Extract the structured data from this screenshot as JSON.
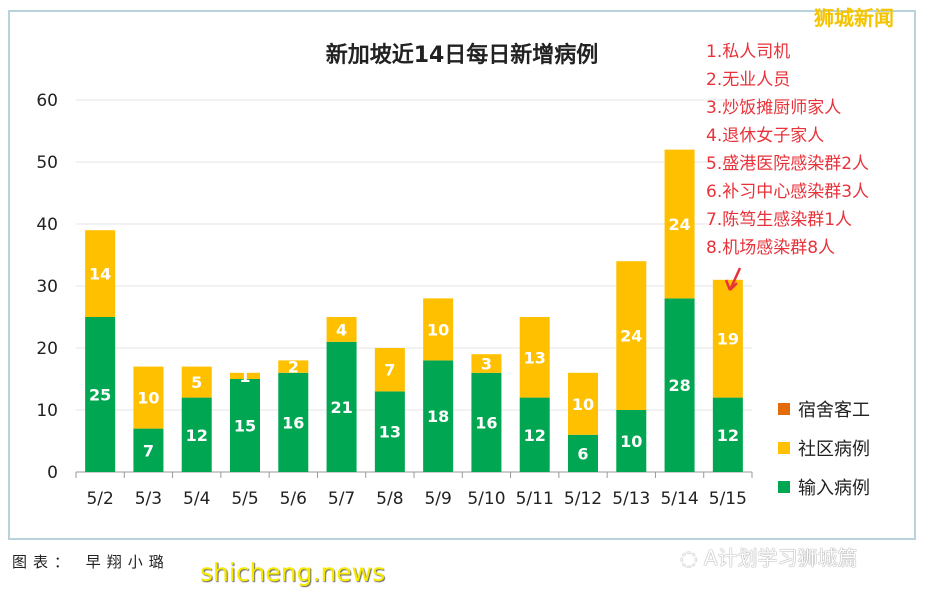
{
  "chart_data": {
    "type": "bar",
    "stacked": true,
    "title": "新加坡近14日每日新增病例",
    "categories": [
      "5/2",
      "5/3",
      "5/4",
      "5/5",
      "5/6",
      "5/7",
      "5/8",
      "5/9",
      "5/10",
      "5/11",
      "5/12",
      "5/13",
      "5/14",
      "5/15"
    ],
    "series": [
      {
        "name": "输入病例",
        "color": "#00a651",
        "values": [
          25,
          7,
          12,
          15,
          16,
          21,
          13,
          18,
          16,
          12,
          6,
          10,
          28,
          12
        ]
      },
      {
        "name": "社区病例",
        "color": "#ffc000",
        "values": [
          14,
          10,
          5,
          1,
          2,
          4,
          7,
          10,
          3,
          13,
          10,
          24,
          24,
          19
        ]
      },
      {
        "name": "宿舍客工",
        "color": "#e36c09",
        "values": [
          0,
          0,
          0,
          0,
          0,
          0,
          0,
          0,
          0,
          0,
          0,
          0,
          0,
          0
        ]
      }
    ],
    "legend_order": [
      "宿舍客工",
      "社区病例",
      "输入病例"
    ],
    "ylim": [
      0,
      60
    ],
    "yticks": [
      0,
      10,
      20,
      30,
      40,
      50,
      60
    ],
    "grid": true,
    "legend_position": "right"
  },
  "annotations": [
    "1.私人司机",
    "2.无业人员",
    "3.炒饭摊厨师家人",
    "4.退休女子家人",
    "5.盛港医院感染群2人",
    "6.补习中心感染群3人",
    "7.陈笃生感染群1人",
    "8.机场感染群8人"
  ],
  "watermarks": {
    "top_right": "狮城新闻",
    "bottom_left": "shicheng.news",
    "bottom_right": "A计划学习狮城篇"
  },
  "credit": "图表： 早翔小璐"
}
